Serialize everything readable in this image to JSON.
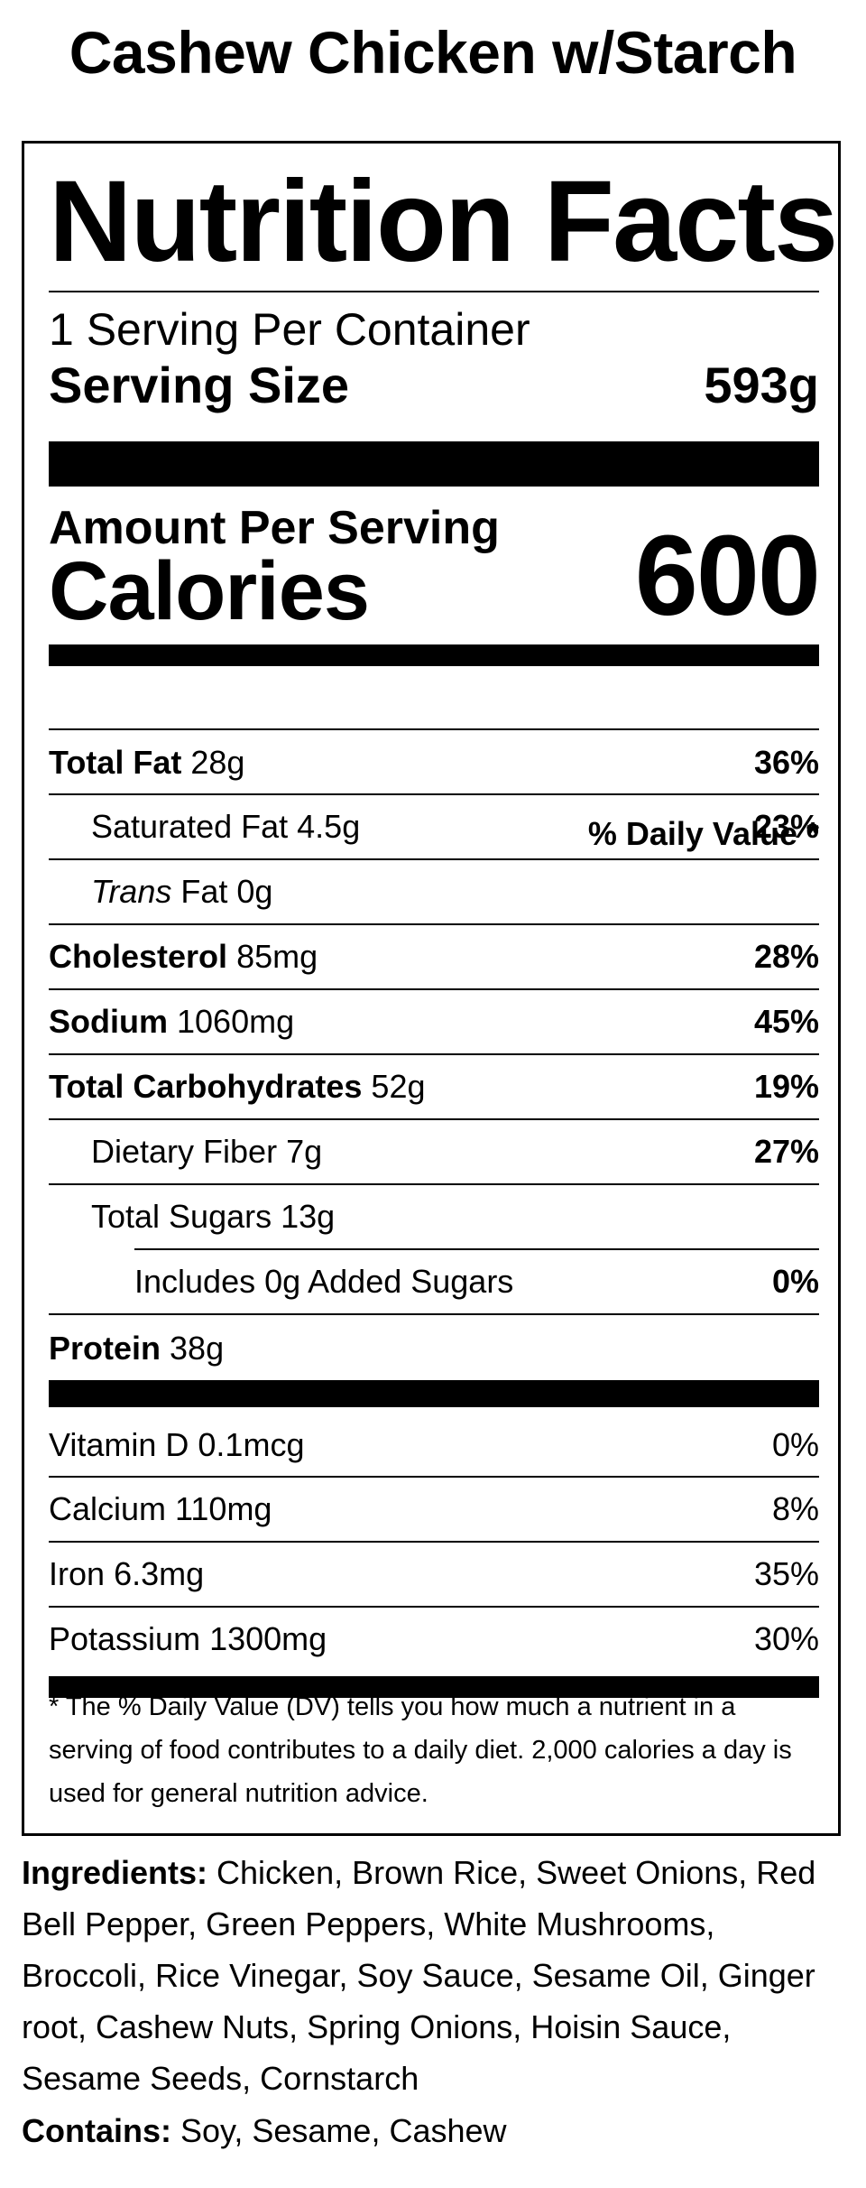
{
  "product": {
    "name": "Cashew Chicken w/Starch"
  },
  "label": {
    "title": "Nutrition Facts",
    "servings_per_container": "1 Serving Per Container",
    "serving_size_label": "Serving Size",
    "serving_size_value": "593g",
    "amount_per_serving": "Amount Per Serving",
    "calories_label": "Calories",
    "calories_value": "600",
    "daily_value_header": "% Daily Value *",
    "nutrients": [
      {
        "name": "Total Fat",
        "amount": "28g",
        "dv": "36%"
      },
      {
        "name": "Saturated Fat",
        "amount": "4.5g",
        "dv": "23%"
      },
      {
        "name_italic": "Trans",
        "name": "Fat",
        "amount": "0g",
        "dv": ""
      },
      {
        "name": "Cholesterol",
        "amount": "85mg",
        "dv": "28%"
      },
      {
        "name": "Sodium",
        "amount": "1060mg",
        "dv": "45%"
      },
      {
        "name": "Total Carbohydrates",
        "amount": "52g",
        "dv": "19%"
      },
      {
        "name": "Dietary Fiber",
        "amount": "7g",
        "dv": "27%"
      },
      {
        "name": "Total Sugars",
        "amount": "13g",
        "dv": ""
      },
      {
        "name": "Includes 0g Added Sugars",
        "amount": "",
        "dv": "0%"
      },
      {
        "name": "Protein",
        "amount": "38g",
        "dv": ""
      }
    ],
    "vitamins": [
      {
        "name": "Vitamin D",
        "amount": "0.1mcg",
        "dv": "0%"
      },
      {
        "name": "Calcium",
        "amount": "110mg",
        "dv": "8%"
      },
      {
        "name": "Iron",
        "amount": "6.3mg",
        "dv": "35%"
      },
      {
        "name": "Potassium",
        "amount": "1300mg",
        "dv": "30%"
      }
    ],
    "footnote": "* The % Daily Value (DV) tells you how much a nutrient in a serving of food contributes to a daily diet. 2,000 calories a day is used for general nutrition advice."
  },
  "ingredients": {
    "label": "Ingredients:",
    "text": "Chicken, Brown Rice, Sweet Onions, Red Bell Pepper, Green Peppers, White Mushrooms, Broccoli, Rice Vinegar, Soy Sauce, Sesame Oil, Ginger root, Cashew Nuts, Spring Onions, Hoisin Sauce, Sesame Seeds, Cornstarch"
  },
  "contains": {
    "label": "Contains:",
    "text": "Soy, Sesame, Cashew"
  }
}
